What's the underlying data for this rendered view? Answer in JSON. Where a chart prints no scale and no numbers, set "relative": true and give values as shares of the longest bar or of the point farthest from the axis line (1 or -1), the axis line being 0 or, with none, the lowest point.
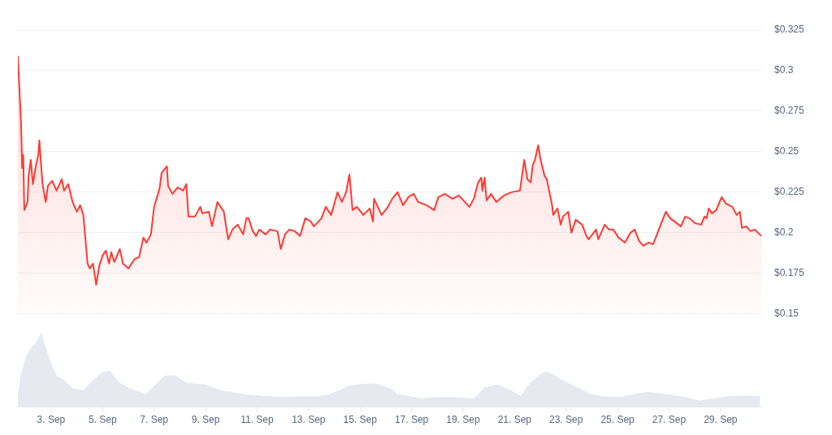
{
  "chart_data": [
    {
      "type": "area",
      "tick_labels": "y",
      "grid": "y",
      "marker": "none",
      "line_style": "solid",
      "x": [
        "--09-01T17:00",
        "--09-01T20:00",
        "--09-01T21:00",
        "--09-01T22:00",
        "--09-01T23:00",
        "--09-02T02:00",
        "--09-02T03:00",
        "--09-02T05:00",
        "--09-02T07:00",
        "--09-02T10:00",
        "--09-02T12:00",
        "--09-02T13:00",
        "--09-02T16:00",
        "--09-02T19:00",
        "--09-02T21:00",
        "--09-03T01:00",
        "--09-03T05:00",
        "--09-03T10:00",
        "--09-03T12:00",
        "--09-03T16:00",
        "--09-03T20:00",
        "--09-04T00:00",
        "--09-04T03:00",
        "--09-04T06:00",
        "--09-04T10:00",
        "--09-04T12:00",
        "--09-04T15:00",
        "--09-04T18:00",
        "--09-04T21:00",
        "--09-05T00:00",
        "--09-05T03:00",
        "--09-05T06:00",
        "--09-05T08:00",
        "--09-05T11:00",
        "--09-05T16:00",
        "--09-05T19:00",
        "--09-06T00:00",
        "--09-06T06:00",
        "--09-06T10:00",
        "--09-06T14:00",
        "--09-06T17:00",
        "--09-06T21:00",
        "--09-07T00:00",
        "--09-07T05:00",
        "--09-07T07:00",
        "--09-07T12:00",
        "--09-07T13:00",
        "--09-07T17:00",
        "--09-07T22:00",
        "--09-08T03:00",
        "--09-08T06:00",
        "--09-08T08:00",
        "--09-08T14:00",
        "--09-08T19:00",
        "--09-08T21:00",
        "--09-09T03:00",
        "--09-09T06:00",
        "--09-09T11:00",
        "--09-09T17:00",
        "--09-09T21:00",
        "--09-10T01:00",
        "--09-10T06:00",
        "--09-10T11:00",
        "--09-10T14:00",
        "--09-10T16:00",
        "--09-10T20:00",
        "--09-10T23:00",
        "--09-11T02:00",
        "--09-11T08:00",
        "--09-11T12:00",
        "--09-11T19:00",
        "--09-11T22:00",
        "--09-12T02:00",
        "--09-12T06:00",
        "--09-12T11:00",
        "--09-12T16:00",
        "--09-12T21:00",
        "--09-13T02:00",
        "--09-13T05:00",
        "--09-13T12:00",
        "--09-13T16:00",
        "--09-13T21:00",
        "--09-14T03:00",
        "--09-14T07:00",
        "--09-14T11:00",
        "--09-14T14:00",
        "--09-14T17:00",
        "--09-14T21:00",
        "--09-15T03:00",
        "--09-15T09:00",
        "--09-15T12:00",
        "--09-15T13:00",
        "--09-15T20:00",
        "--09-16T01:00",
        "--09-16T06:00",
        "--09-16T11:00",
        "--09-16T16:00",
        "--09-16T21:00",
        "--09-17T02:00",
        "--09-17T06:00",
        "--09-17T14:00",
        "--09-17T21:00",
        "--09-18T01:00",
        "--09-18T07:00",
        "--09-18T14:00",
        "--09-18T20:00",
        "--09-19T06:00",
        "--09-19T10:00",
        "--09-19T14:00",
        "--09-19T17:00",
        "--09-19T18:00",
        "--09-19T20:00",
        "--09-19T22:00",
        "--09-20T02:00",
        "--09-20T07:00",
        "--09-20T14:00",
        "--09-20T21:00",
        "--09-21T05:00",
        "--09-21T09:00",
        "--09-21T12:00",
        "--09-21T15:00",
        "--09-21T17:00",
        "--09-21T19:00",
        "--09-21T22:00",
        "--09-22T00:00",
        "--09-22T04:00",
        "--09-22T06:00",
        "--09-22T11:00",
        "--09-22T12:00",
        "--09-22T16:00",
        "--09-22T19:00",
        "--09-22T21:00",
        "--09-23T02:00",
        "--09-23T05:00",
        "--09-23T09:00",
        "--09-23T15:00",
        "--09-23T19:00",
        "--09-23T21:00",
        "--09-24T04:00",
        "--09-24T06:00",
        "--09-24T12:00",
        "--09-24T16:00",
        "--09-24T20:00",
        "--09-25T01:00",
        "--09-25T07:00",
        "--09-25T12:00",
        "--09-25T16:00",
        "--09-25T20:00",
        "--09-26T00:00",
        "--09-26T05:00",
        "--09-26T09:00",
        "--09-26T11:00",
        "--09-26T15:00",
        "--09-26T21:00",
        "--09-27T01:00",
        "--09-27T05:00",
        "--09-27T11:00",
        "--09-27T15:00",
        "--09-27T19:00",
        "--09-28T00:00",
        "--09-28T06:00",
        "--09-28T09:00",
        "--09-28T11:00",
        "--09-28T13:00",
        "--09-28T16:00",
        "--09-28T20:00",
        "--09-29T01:00",
        "--09-29T05:00",
        "--09-29T11:00",
        "--09-29T15:00",
        "--09-29T18:00",
        "--09-29T20:00",
        "--09-30T00:00",
        "--09-30T04:00",
        "--09-30T08:00",
        "--09-30T14:00"
      ],
      "series": [
        {
          "color": "#ff3a33",
          "values": [
            0.309,
            0.267,
            0.24,
            0.248,
            0.214,
            0.219,
            0.235,
            0.245,
            0.23,
            0.242,
            0.248,
            0.257,
            0.23,
            0.219,
            0.229,
            0.232,
            0.226,
            0.233,
            0.226,
            0.23,
            0.219,
            0.213,
            0.217,
            0.211,
            0.181,
            0.178,
            0.181,
            0.168,
            0.18,
            0.186,
            0.189,
            0.181,
            0.188,
            0.182,
            0.19,
            0.181,
            0.178,
            0.184,
            0.185,
            0.197,
            0.194,
            0.199,
            0.216,
            0.227,
            0.237,
            0.241,
            0.229,
            0.224,
            0.228,
            0.226,
            0.23,
            0.21,
            0.21,
            0.216,
            0.212,
            0.213,
            0.204,
            0.219,
            0.213,
            0.196,
            0.202,
            0.205,
            0.199,
            0.209,
            0.209,
            0.201,
            0.198,
            0.202,
            0.199,
            0.202,
            0.201,
            0.19,
            0.199,
            0.202,
            0.201,
            0.198,
            0.209,
            0.207,
            0.204,
            0.209,
            0.216,
            0.211,
            0.225,
            0.219,
            0.225,
            0.236,
            0.214,
            0.216,
            0.211,
            0.215,
            0.207,
            0.221,
            0.211,
            0.215,
            0.221,
            0.225,
            0.217,
            0.222,
            0.224,
            0.219,
            0.217,
            0.214,
            0.222,
            0.224,
            0.221,
            0.223,
            0.216,
            0.221,
            0.231,
            0.234,
            0.226,
            0.234,
            0.22,
            0.224,
            0.219,
            0.223,
            0.225,
            0.226,
            0.245,
            0.233,
            0.231,
            0.242,
            0.245,
            0.254,
            0.246,
            0.235,
            0.233,
            0.217,
            0.211,
            0.215,
            0.205,
            0.21,
            0.213,
            0.2,
            0.208,
            0.205,
            0.198,
            0.196,
            0.202,
            0.196,
            0.205,
            0.202,
            0.202,
            0.197,
            0.194,
            0.2,
            0.202,
            0.195,
            0.192,
            0.194,
            0.193,
            0.196,
            0.203,
            0.213,
            0.209,
            0.207,
            0.204,
            0.21,
            0.209,
            0.206,
            0.205,
            0.21,
            0.209,
            0.215,
            0.212,
            0.214,
            0.222,
            0.218,
            0.216,
            0.211,
            0.213,
            0.203,
            0.204,
            0.201,
            0.202,
            0.198
          ]
        }
      ],
      "xlim": [
        "--09-01T17:00",
        "--09-30T14:00"
      ],
      "ylim": [
        0.15,
        0.325
      ],
      "yticks": [
        {
          "value": 0.15,
          "label": "$0.15"
        },
        {
          "value": 0.175,
          "label": "$0.175"
        },
        {
          "value": 0.2,
          "label": "$0.2"
        },
        {
          "value": 0.225,
          "label": "$0.225"
        },
        {
          "value": 0.25,
          "label": "$0.25"
        },
        {
          "value": 0.275,
          "label": "$0.275"
        },
        {
          "value": 0.3,
          "label": "$0.3"
        },
        {
          "value": 0.325,
          "label": "$0.325"
        }
      ]
    },
    {
      "type": "area",
      "relative": true,
      "tick_labels": "x",
      "marker": "none",
      "x": [
        "--09-01T17:00",
        "--09-01T20:00",
        "--09-02T01:00",
        "--09-02T06:00",
        "--09-02T11:00",
        "--09-02T15:00",
        "--09-02T16:00",
        "--09-02T20:00",
        "--09-03T00:00",
        "--09-03T05:00",
        "--09-03T12:00",
        "--09-03T20:00",
        "--09-04T06:00",
        "--09-04T13:00",
        "--09-05T00:00",
        "--09-05T07:00",
        "--09-05T15:00",
        "--09-06T01:00",
        "--09-06T16:00",
        "--09-07T00:00",
        "--09-07T10:00",
        "--09-07T20:00",
        "--09-08T06:00",
        "--09-08T23:00",
        "--09-09T15:00",
        "--09-10T11:00",
        "--09-11T02:00",
        "--09-11T22:00",
        "--09-12T14:00",
        "--09-13T10:00",
        "--09-13T20:00",
        "--09-14T14:00",
        "--09-15T02:00",
        "--09-15T15:00",
        "--09-16T04:00",
        "--09-16T11:00",
        "--09-17T10:00",
        "--09-17T22:00",
        "--09-18T14:00",
        "--09-19T10:00",
        "--09-19T20:00",
        "--09-20T08:00",
        "--09-20T21:00",
        "--09-21T06:00",
        "--09-21T12:00",
        "--09-21T22:00",
        "--09-22T05:00",
        "--09-22T14:00",
        "--09-23T02:00",
        "--09-23T12:00",
        "--09-23T23:00",
        "--09-24T11:00",
        "--09-25T02:00",
        "--09-25T15:00",
        "--09-26T04:00",
        "--09-26T21:00",
        "--09-27T15:00",
        "--09-28T04:00",
        "--09-28T16:00",
        "--09-29T07:00",
        "--09-29T23:00",
        "--09-30T13:00"
      ],
      "values": [
        0.11,
        0.42,
        0.69,
        0.8,
        0.88,
        1,
        0.93,
        0.74,
        0.58,
        0.42,
        0.36,
        0.25,
        0.22,
        0.33,
        0.47,
        0.48,
        0.33,
        0.25,
        0.17,
        0.28,
        0.42,
        0.42,
        0.32,
        0.3,
        0.22,
        0.17,
        0.15,
        0.13,
        0.14,
        0.14,
        0.17,
        0.28,
        0.31,
        0.31,
        0.25,
        0.17,
        0.11,
        0.13,
        0.13,
        0.11,
        0.26,
        0.3,
        0.22,
        0.14,
        0.28,
        0.42,
        0.48,
        0.42,
        0.32,
        0.25,
        0.17,
        0.14,
        0.13,
        0.17,
        0.2,
        0.17,
        0.13,
        0.08,
        0.11,
        0.14,
        0.15,
        0.14
      ],
      "color": "#e6e9ef",
      "xlim": [
        "--09-01T17:00",
        "--09-30T14:00"
      ],
      "xticks": [
        {
          "value": "--09-03",
          "label": "3. Sep"
        },
        {
          "value": "--09-05",
          "label": "5. Sep"
        },
        {
          "value": "--09-07",
          "label": "7. Sep"
        },
        {
          "value": "--09-09",
          "label": "9. Sep"
        },
        {
          "value": "--09-11",
          "label": "11. Sep"
        },
        {
          "value": "--09-13",
          "label": "13. Sep"
        },
        {
          "value": "--09-15",
          "label": "15. Sep"
        },
        {
          "value": "--09-17",
          "label": "17. Sep"
        },
        {
          "value": "--09-19",
          "label": "19. Sep"
        },
        {
          "value": "--09-21",
          "label": "21. Sep"
        },
        {
          "value": "--09-23",
          "label": "23. Sep"
        },
        {
          "value": "--09-25",
          "label": "25. Sep"
        },
        {
          "value": "--09-27",
          "label": "27. Sep"
        },
        {
          "value": "--09-29",
          "label": "29. Sep"
        }
      ]
    }
  ]
}
